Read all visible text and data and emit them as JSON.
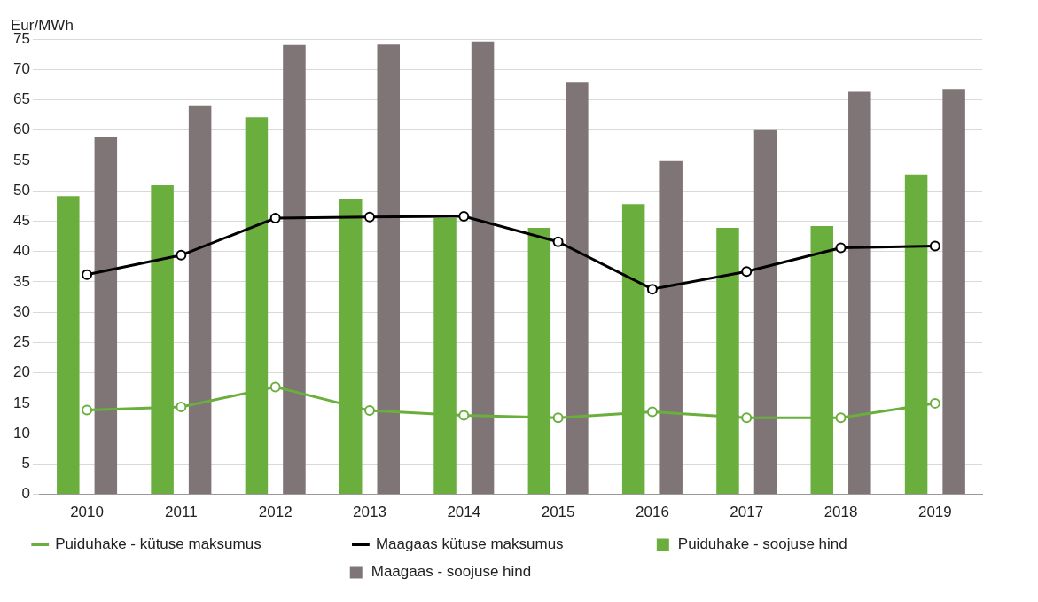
{
  "chart_data": {
    "type": "bar",
    "ylabel": "Eur/MWh",
    "categories": [
      "2010",
      "2011",
      "2012",
      "2013",
      "2014",
      "2015",
      "2016",
      "2017",
      "2018",
      "2019"
    ],
    "series": [
      {
        "name": "Puiduhake - soojuse hind",
        "color": "#6aaf3d",
        "values": [
          49.1,
          50.9,
          62.1,
          48.7,
          45.5,
          43.9,
          47.8,
          43.9,
          44.2,
          52.7
        ]
      },
      {
        "name": "Maagaas - soojuse hind",
        "color": "#7f7576",
        "values": [
          58.8,
          64.1,
          74,
          74.1,
          74.6,
          67.8,
          54.9,
          60,
          66.3,
          66.8
        ]
      },
      {
        "name": "Puiduhake - kütuse maksumus",
        "type": "line",
        "color": "#6aaf3d",
        "marker": "circle",
        "values": [
          13.9,
          14.4,
          17.7,
          13.8,
          13,
          12.6,
          13.6,
          12.6,
          12.6,
          15
        ]
      },
      {
        "name": "Maagaas kütuse maksumus",
        "type": "line",
        "color": "#000000",
        "marker": "circle",
        "values": [
          36.2,
          39.4,
          45.5,
          45.7,
          45.8,
          41.6,
          33.8,
          36.7,
          40.6,
          40.9
        ]
      }
    ],
    "ylim": [
      0,
      75
    ],
    "yticks": [
      0,
      5,
      10,
      15,
      20,
      25,
      30,
      35,
      40,
      45,
      50,
      55,
      60,
      65,
      70,
      75
    ],
    "grid": "y",
    "legend": "bottom"
  }
}
